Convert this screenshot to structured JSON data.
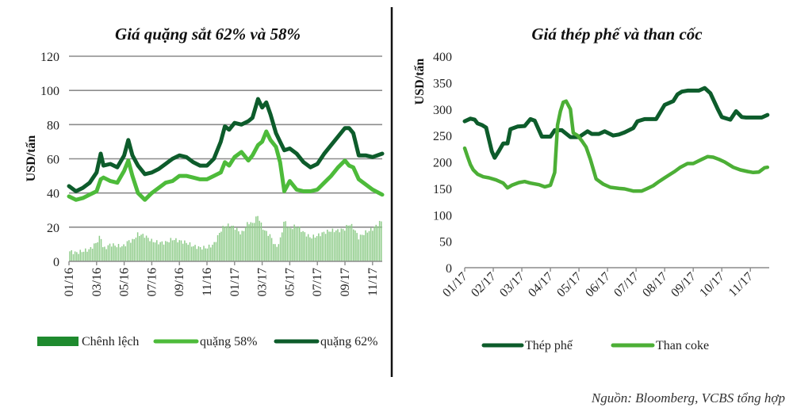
{
  "source": "Nguồn: Bloomberg, VCBS tổng hợp",
  "chart_data": [
    {
      "type": "line",
      "title": "Giá quặng sắt 62% và 58%",
      "ylabel": "USD/tấn",
      "xlabel": "",
      "ylim": [
        0,
        120
      ],
      "yticks": [
        "0",
        "20",
        "40",
        "60",
        "80",
        "100",
        "120"
      ],
      "ytick_values": [
        0,
        20,
        40,
        60,
        80,
        100,
        120
      ],
      "x_unit": "months since 01/16",
      "xlim": [
        0,
        22.7
      ],
      "xticks": [
        "01/16",
        "03/16",
        "05/16",
        "07/16",
        "09/16",
        "11/16",
        "01/17",
        "03/17",
        "05/17",
        "07/17",
        "09/17",
        "11/17"
      ],
      "xtick_values": [
        0,
        2,
        4,
        6,
        8,
        10,
        12,
        14,
        16,
        18,
        20,
        22
      ],
      "grid": true,
      "legend": "bottom",
      "x": [
        0,
        0.5,
        1,
        1.5,
        2,
        2.3,
        2.5,
        3,
        3.5,
        4,
        4.3,
        4.6,
        5,
        5.5,
        6,
        6.5,
        7,
        7.5,
        8,
        8.5,
        9,
        9.5,
        10,
        10.5,
        11,
        11.3,
        11.6,
        12,
        12.5,
        13,
        13.3,
        13.7,
        14,
        14.3,
        14.6,
        15,
        15.3,
        15.6,
        16,
        16.5,
        17,
        17.5,
        18,
        18.5,
        19,
        19.5,
        20,
        20.3,
        20.6,
        21,
        21.5,
        22,
        22.7
      ],
      "series": [
        {
          "name": "quặng 62%",
          "kind": "line",
          "color": "#0d5c2b",
          "values": [
            44,
            41,
            43,
            46,
            52,
            63,
            56,
            57,
            55,
            62,
            71,
            62,
            56,
            51,
            52,
            54,
            57,
            60,
            62,
            61,
            58,
            56,
            56,
            60,
            70,
            79,
            77,
            81,
            80,
            82,
            84,
            95,
            90,
            93,
            86,
            75,
            70,
            65,
            66,
            63,
            58,
            55,
            57,
            63,
            68,
            73,
            78,
            78,
            75,
            62,
            62,
            61,
            63
          ]
        },
        {
          "name": "quặng 58%",
          "kind": "line",
          "color": "#4dbb3a",
          "values": [
            38,
            36,
            37,
            39,
            41,
            48,
            49,
            47,
            46,
            53,
            59,
            50,
            40,
            36,
            40,
            43,
            46,
            47,
            50,
            50,
            49,
            48,
            48,
            50,
            52,
            58,
            56,
            61,
            64,
            59,
            62,
            68,
            70,
            76,
            71,
            67,
            58,
            41,
            47,
            42,
            41,
            41,
            42,
            46,
            50,
            55,
            59,
            56,
            55,
            48,
            45,
            42,
            39
          ]
        },
        {
          "name": "Chênh lệch",
          "kind": "bar",
          "color": "#8fcc8a",
          "values": [
            6,
            5,
            6,
            7,
            11,
            15,
            7,
            10,
            9,
            9,
            12,
            12,
            16,
            15,
            12,
            11,
            11,
            13,
            12,
            11,
            9,
            8,
            8,
            10,
            18,
            21,
            21,
            20,
            16,
            23,
            22,
            27,
            20,
            17,
            15,
            8,
            12,
            24,
            19,
            21,
            17,
            14,
            15,
            17,
            18,
            18,
            19,
            22,
            20,
            14,
            17,
            19,
            24
          ]
        }
      ]
    },
    {
      "type": "line",
      "title": "Giá thép phế và than cốc",
      "ylabel": "USD/tấn",
      "xlabel": "",
      "ylim": [
        0,
        400
      ],
      "yticks": [
        "0",
        "50",
        "100",
        "150",
        "200",
        "250",
        "300",
        "350",
        "400"
      ],
      "ytick_values": [
        0,
        50,
        100,
        150,
        200,
        250,
        300,
        350,
        400
      ],
      "x_unit": "months since 01/17",
      "xlim": [
        0,
        10.66
      ],
      "xticks": [
        "01/17",
        "02/17",
        "03/17",
        "04/17",
        "05/17",
        "06/17",
        "07/17",
        "08/17",
        "09/17",
        "10/17",
        "11/17"
      ],
      "xtick_values": [
        0,
        1,
        2,
        3,
        4,
        5,
        6,
        7,
        8,
        9,
        10
      ],
      "grid": false,
      "legend": "bottom",
      "series": [
        {
          "name": "Thép phế",
          "kind": "line",
          "color": "#0d5c2b",
          "x": [
            0,
            0.2,
            0.35,
            0.45,
            0.6,
            0.75,
            0.95,
            1.05,
            1.2,
            1.35,
            1.5,
            1.6,
            1.85,
            2.1,
            2.3,
            2.45,
            2.7,
            3.0,
            3.15,
            3.4,
            3.7,
            4.0,
            4.3,
            4.45,
            4.7,
            4.9,
            5.2,
            5.4,
            5.6,
            5.9,
            6.05,
            6.3,
            6.5,
            6.7,
            7.0,
            7.3,
            7.45,
            7.6,
            7.8,
            8.2,
            8.4,
            8.6,
            8.85,
            9.0,
            9.3,
            9.5,
            9.7,
            9.85,
            10.1,
            10.4,
            10.6
          ],
          "values": [
            277,
            282,
            280,
            273,
            270,
            265,
            220,
            208,
            221,
            235,
            235,
            262,
            267,
            268,
            281,
            278,
            248,
            248,
            260,
            260,
            247,
            247,
            258,
            253,
            253,
            258,
            250,
            252,
            256,
            264,
            277,
            281,
            281,
            281,
            308,
            315,
            328,
            333,
            335,
            335,
            340,
            330,
            301,
            285,
            280,
            296,
            285,
            284,
            284,
            284,
            289
          ]
        },
        {
          "name": "Than coke",
          "kind": "line",
          "color": "#4caf36",
          "x": [
            0,
            0.1,
            0.2,
            0.3,
            0.45,
            0.65,
            0.85,
            1.1,
            1.35,
            1.5,
            1.65,
            1.9,
            2.1,
            2.3,
            2.6,
            2.8,
            3.0,
            3.15,
            3.25,
            3.35,
            3.45,
            3.55,
            3.7,
            3.8,
            3.95,
            4.1,
            4.25,
            4.4,
            4.6,
            4.85,
            5.1,
            5.4,
            5.6,
            5.9,
            6.2,
            6.4,
            6.6,
            6.8,
            7.0,
            7.2,
            7.35,
            7.55,
            7.8,
            8.0,
            8.3,
            8.5,
            8.7,
            8.9,
            9.1,
            9.4,
            9.65,
            9.9,
            10.1,
            10.3,
            10.5,
            10.6
          ],
          "values": [
            226,
            210,
            195,
            185,
            177,
            172,
            170,
            166,
            160,
            151,
            156,
            161,
            163,
            160,
            157,
            153,
            156,
            180,
            270,
            296,
            313,
            315,
            300,
            255,
            250,
            240,
            228,
            205,
            168,
            158,
            152,
            150,
            149,
            145,
            145,
            150,
            155,
            163,
            170,
            177,
            182,
            190,
            197,
            197,
            205,
            210,
            209,
            205,
            200,
            190,
            185,
            182,
            180,
            181,
            189,
            190
          ]
        }
      ]
    }
  ]
}
